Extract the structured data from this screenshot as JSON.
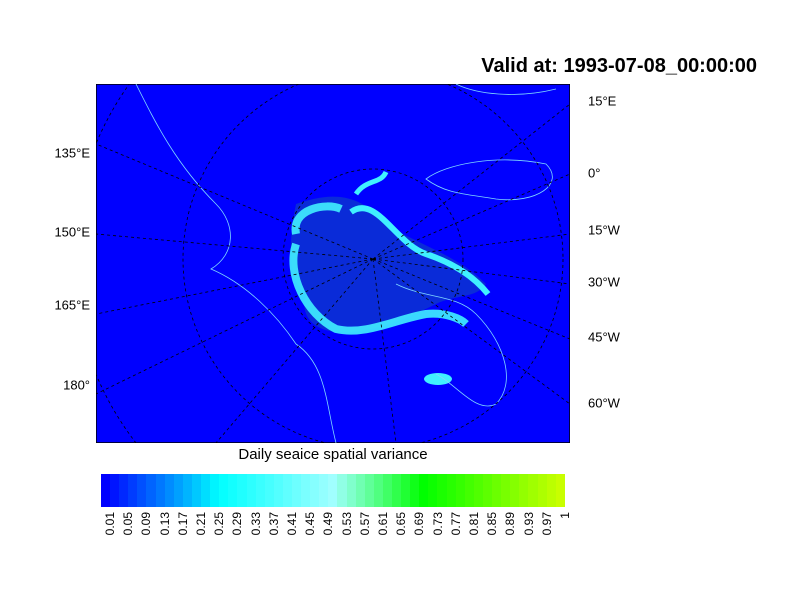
{
  "title": "Valid at: 1993-07-08_00:00:00",
  "map": {
    "projection": "polar stereographic (north)",
    "background_color": "#0000ff",
    "coastline_color": "#7fd8ff",
    "left_labels": [
      "135°E",
      "150°E",
      "165°E",
      "180°"
    ],
    "right_labels": [
      "15°E",
      "0°",
      "15°W",
      "30°W",
      "45°W",
      "60°W"
    ]
  },
  "colorbar": {
    "title": "Daily seaice spatial variance",
    "labels": [
      "0.01",
      "0.05",
      "0.09",
      "0.13",
      "0.17",
      "0.21",
      "0.25",
      "0.29",
      "0.33",
      "0.37",
      "0.41",
      "0.45",
      "0.49",
      "0.53",
      "0.57",
      "0.61",
      "0.65",
      "0.69",
      "0.73",
      "0.77",
      "0.81",
      "0.85",
      "0.89",
      "0.93",
      "0.97",
      "1"
    ],
    "color_stops": [
      "#0000ff",
      "#00c8ff",
      "#00ffff",
      "#a0ffff",
      "#00ff00",
      "#c8ff00"
    ]
  }
}
